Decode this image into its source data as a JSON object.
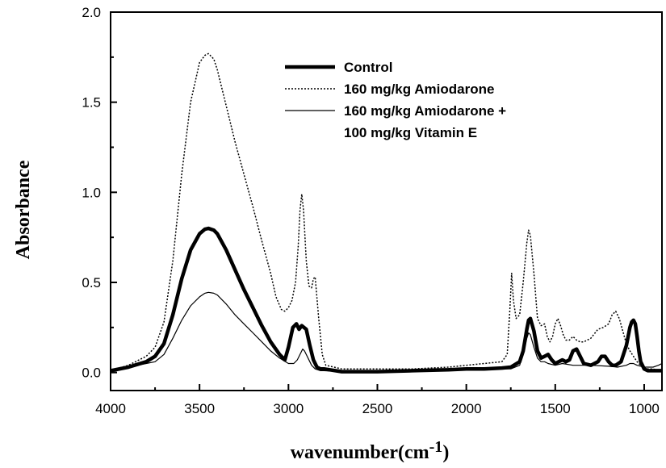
{
  "chart_data": {
    "type": "line",
    "xlabel": "wavenumber(cm",
    "xlabel_superscript": "-1",
    "xlabel_suffix": ")",
    "ylabel": "Absorbance",
    "xlim": [
      4000,
      900
    ],
    "ylim": [
      -0.1,
      2.0
    ],
    "x_reversed": true,
    "grid": false,
    "legend_position": "top-center",
    "x_ticks": [
      4000,
      3500,
      3000,
      2500,
      2000,
      1500,
      1000
    ],
    "x_tick_labels": [
      "4000",
      "3500",
      "3000",
      "2500",
      "2000",
      "1500",
      "1000"
    ],
    "y_ticks": [
      0.0,
      0.5,
      1.0,
      1.5,
      2.0
    ],
    "y_tick_labels": [
      "0.0",
      "0.5",
      "1.0",
      "1.5",
      "2.0"
    ],
    "series": [
      {
        "name": "Control",
        "style": "thick-solid",
        "color": "#000000",
        "x": [
          4000,
          3900,
          3800,
          3750,
          3700,
          3650,
          3600,
          3550,
          3500,
          3470,
          3450,
          3420,
          3400,
          3350,
          3300,
          3250,
          3200,
          3150,
          3100,
          3050,
          3020,
          3000,
          2975,
          2955,
          2940,
          2925,
          2900,
          2880,
          2860,
          2840,
          2820,
          2800,
          2700,
          2500,
          2300,
          2100,
          2000,
          1900,
          1800,
          1750,
          1700,
          1680,
          1660,
          1650,
          1640,
          1620,
          1600,
          1580,
          1560,
          1540,
          1520,
          1500,
          1480,
          1460,
          1440,
          1420,
          1400,
          1380,
          1360,
          1340,
          1300,
          1260,
          1240,
          1220,
          1200,
          1180,
          1160,
          1130,
          1100,
          1080,
          1070,
          1060,
          1050,
          1040,
          1030,
          1020,
          1000,
          980,
          950,
          920,
          900
        ],
        "y": [
          0.01,
          0.03,
          0.06,
          0.09,
          0.16,
          0.32,
          0.52,
          0.68,
          0.77,
          0.795,
          0.8,
          0.79,
          0.77,
          0.68,
          0.57,
          0.46,
          0.36,
          0.26,
          0.17,
          0.1,
          0.07,
          0.14,
          0.25,
          0.27,
          0.24,
          0.26,
          0.24,
          0.15,
          0.07,
          0.03,
          0.02,
          0.02,
          0.005,
          0.005,
          0.01,
          0.015,
          0.02,
          0.02,
          0.025,
          0.03,
          0.06,
          0.12,
          0.24,
          0.29,
          0.3,
          0.23,
          0.12,
          0.08,
          0.09,
          0.1,
          0.07,
          0.05,
          0.06,
          0.07,
          0.06,
          0.07,
          0.12,
          0.13,
          0.09,
          0.05,
          0.04,
          0.06,
          0.09,
          0.09,
          0.06,
          0.04,
          0.04,
          0.06,
          0.15,
          0.25,
          0.28,
          0.29,
          0.27,
          0.2,
          0.12,
          0.06,
          0.02,
          0.01,
          0.01,
          0.01,
          0.01
        ]
      },
      {
        "name": "160 mg/kg Amiodarone",
        "style": "dotted",
        "color": "#000000",
        "x": [
          4000,
          3900,
          3800,
          3750,
          3700,
          3650,
          3600,
          3550,
          3500,
          3470,
          3450,
          3420,
          3400,
          3350,
          3300,
          3250,
          3200,
          3150,
          3100,
          3070,
          3040,
          3020,
          3000,
          2980,
          2960,
          2945,
          2935,
          2925,
          2915,
          2900,
          2885,
          2870,
          2860,
          2850,
          2830,
          2810,
          2790,
          2700,
          2500,
          2300,
          2100,
          2000,
          1900,
          1800,
          1770,
          1755,
          1745,
          1735,
          1720,
          1700,
          1680,
          1660,
          1650,
          1640,
          1620,
          1600,
          1580,
          1560,
          1545,
          1530,
          1515,
          1500,
          1485,
          1470,
          1455,
          1440,
          1420,
          1400,
          1380,
          1360,
          1340,
          1300,
          1260,
          1230,
          1200,
          1180,
          1160,
          1140,
          1120,
          1100,
          1080,
          1060,
          1040,
          1020,
          1000,
          980,
          950,
          920,
          900
        ],
        "y": [
          0.01,
          0.04,
          0.09,
          0.14,
          0.28,
          0.62,
          1.1,
          1.5,
          1.72,
          1.76,
          1.77,
          1.74,
          1.68,
          1.48,
          1.28,
          1.1,
          0.92,
          0.73,
          0.55,
          0.42,
          0.35,
          0.34,
          0.36,
          0.4,
          0.5,
          0.7,
          0.9,
          0.99,
          0.9,
          0.62,
          0.48,
          0.47,
          0.52,
          0.53,
          0.3,
          0.1,
          0.04,
          0.02,
          0.02,
          0.02,
          0.03,
          0.04,
          0.05,
          0.06,
          0.1,
          0.35,
          0.55,
          0.4,
          0.3,
          0.32,
          0.5,
          0.72,
          0.79,
          0.76,
          0.55,
          0.3,
          0.26,
          0.27,
          0.2,
          0.17,
          0.2,
          0.27,
          0.3,
          0.26,
          0.21,
          0.18,
          0.18,
          0.2,
          0.18,
          0.17,
          0.17,
          0.19,
          0.24,
          0.25,
          0.27,
          0.32,
          0.34,
          0.3,
          0.23,
          0.16,
          0.12,
          0.09,
          0.06,
          0.04,
          0.03,
          0.02,
          0.02,
          0.01,
          0.01
        ]
      },
      {
        "name": "160 mg/kg Amiodarone +",
        "name_line2": "100 mg/kg Vitamin E",
        "style": "thin-solid",
        "color": "#000000",
        "x": [
          4000,
          3900,
          3800,
          3750,
          3700,
          3650,
          3600,
          3550,
          3500,
          3470,
          3450,
          3420,
          3400,
          3350,
          3300,
          3250,
          3200,
          3150,
          3100,
          3050,
          3000,
          2970,
          2950,
          2930,
          2920,
          2910,
          2890,
          2870,
          2850,
          2820,
          2800,
          2700,
          2500,
          2300,
          2100,
          2000,
          1900,
          1800,
          1750,
          1700,
          1680,
          1660,
          1650,
          1640,
          1620,
          1600,
          1580,
          1560,
          1540,
          1500,
          1460,
          1400,
          1300,
          1200,
          1150,
          1100,
          1080,
          1060,
          1040,
          1000,
          950,
          920,
          900
        ],
        "y": [
          0.01,
          0.03,
          0.05,
          0.06,
          0.1,
          0.19,
          0.29,
          0.37,
          0.42,
          0.44,
          0.445,
          0.44,
          0.43,
          0.38,
          0.32,
          0.27,
          0.22,
          0.17,
          0.12,
          0.08,
          0.05,
          0.05,
          0.07,
          0.11,
          0.13,
          0.12,
          0.08,
          0.04,
          0.02,
          0.01,
          0.01,
          0.005,
          0.005,
          0.01,
          0.01,
          0.015,
          0.015,
          0.02,
          0.02,
          0.04,
          0.1,
          0.19,
          0.22,
          0.21,
          0.14,
          0.08,
          0.06,
          0.06,
          0.05,
          0.04,
          0.05,
          0.04,
          0.04,
          0.035,
          0.03,
          0.04,
          0.05,
          0.05,
          0.04,
          0.03,
          0.03,
          0.04,
          0.05
        ]
      }
    ]
  }
}
